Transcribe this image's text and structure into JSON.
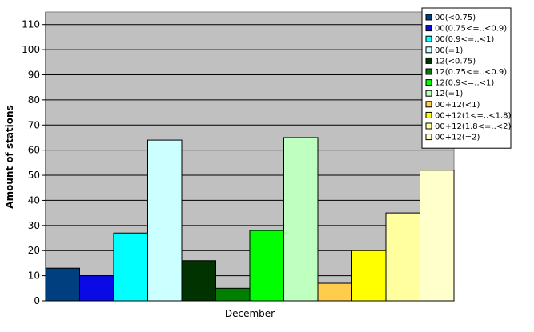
{
  "chart_data": {
    "type": "bar",
    "y_label": "Amount of stations",
    "categories": [
      "December"
    ],
    "series": [
      {
        "name": "00(<0.75)",
        "color": "#003f7f",
        "values": [
          13
        ]
      },
      {
        "name": "00(0.75<=..<0.9)",
        "color": "#0a0ae6",
        "values": [
          10
        ]
      },
      {
        "name": "00(0.9<=..<1)",
        "color": "#00ffff",
        "values": [
          27
        ]
      },
      {
        "name": "00(=1)",
        "color": "#ccffff",
        "values": [
          64
        ]
      },
      {
        "name": "12(<0.75)",
        "color": "#003300",
        "values": [
          16
        ]
      },
      {
        "name": "12(0.75<=..<0.9)",
        "color": "#007f00",
        "values": [
          5
        ]
      },
      {
        "name": "12(0.9<=..<1)",
        "color": "#00ff00",
        "values": [
          28
        ]
      },
      {
        "name": "12(=1)",
        "color": "#bfffbf",
        "values": [
          65
        ]
      },
      {
        "name": "00+12(<1)",
        "color": "#ffcc4c",
        "values": [
          7
        ]
      },
      {
        "name": "00+12(1<=..<1.8)",
        "color": "#ffff00",
        "values": [
          20
        ]
      },
      {
        "name": "00+12(1.8<=..<2)",
        "color": "#ffffa0",
        "values": [
          35
        ]
      },
      {
        "name": "00+12(=2)",
        "color": "#ffffcc",
        "values": [
          52
        ]
      }
    ],
    "ylim": [
      0,
      115
    ],
    "yticks": [
      0,
      10,
      20,
      30,
      40,
      50,
      60,
      70,
      80,
      90,
      100,
      110
    ],
    "grid": true,
    "legend": "top-right",
    "plot_background": "#c0c0c0"
  }
}
